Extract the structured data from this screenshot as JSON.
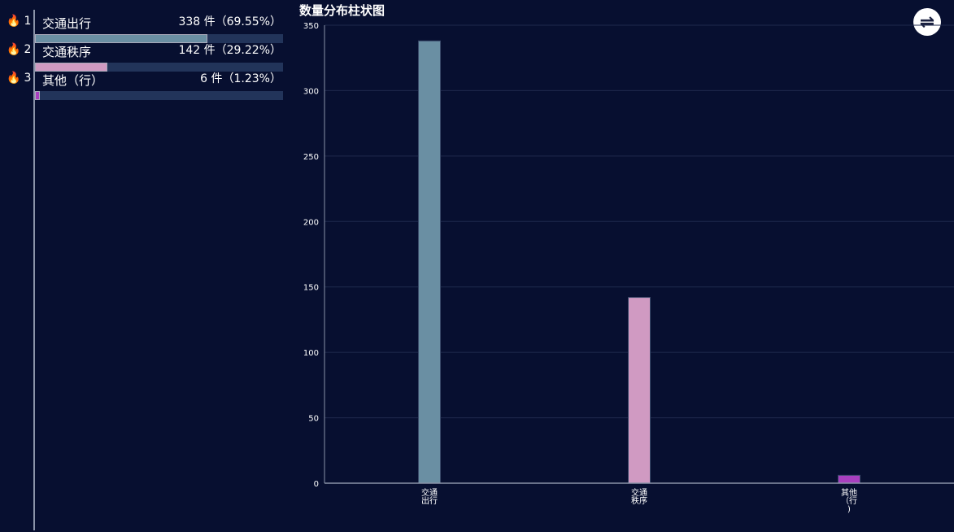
{
  "ranking": [
    {
      "rank": "1",
      "name": "交通出行",
      "value": "338 件（69.55%）",
      "percent": 69.55,
      "color": "#6a8fa3"
    },
    {
      "rank": "2",
      "name": "交通秩序",
      "value": "142 件（29.22%）",
      "percent": 29.22,
      "color": "#d09ac2"
    },
    {
      "rank": "3",
      "name": "其他（行）",
      "value": "6 件（1.23%）",
      "percent": 1.23,
      "color": "#a83fbf"
    }
  ],
  "icons": {
    "rank": "flame-icon",
    "toggle": "swap-icon"
  },
  "chart_data": {
    "type": "bar",
    "title": "数量分布柱状图",
    "categories": [
      "交通出行",
      "交通秩序",
      "其他（行）"
    ],
    "category_label_lines": [
      [
        "交通",
        "出行"
      ],
      [
        "交通",
        "秩序"
      ],
      [
        "其他",
        "（行",
        ")"
      ]
    ],
    "values": [
      338,
      142,
      6
    ],
    "colors": [
      "#6a8fa3",
      "#d09ac2",
      "#a83fbf"
    ],
    "ylim": [
      0,
      350
    ],
    "yticks": [
      0,
      50,
      100,
      150,
      200,
      250,
      300,
      350
    ],
    "grid": true
  }
}
